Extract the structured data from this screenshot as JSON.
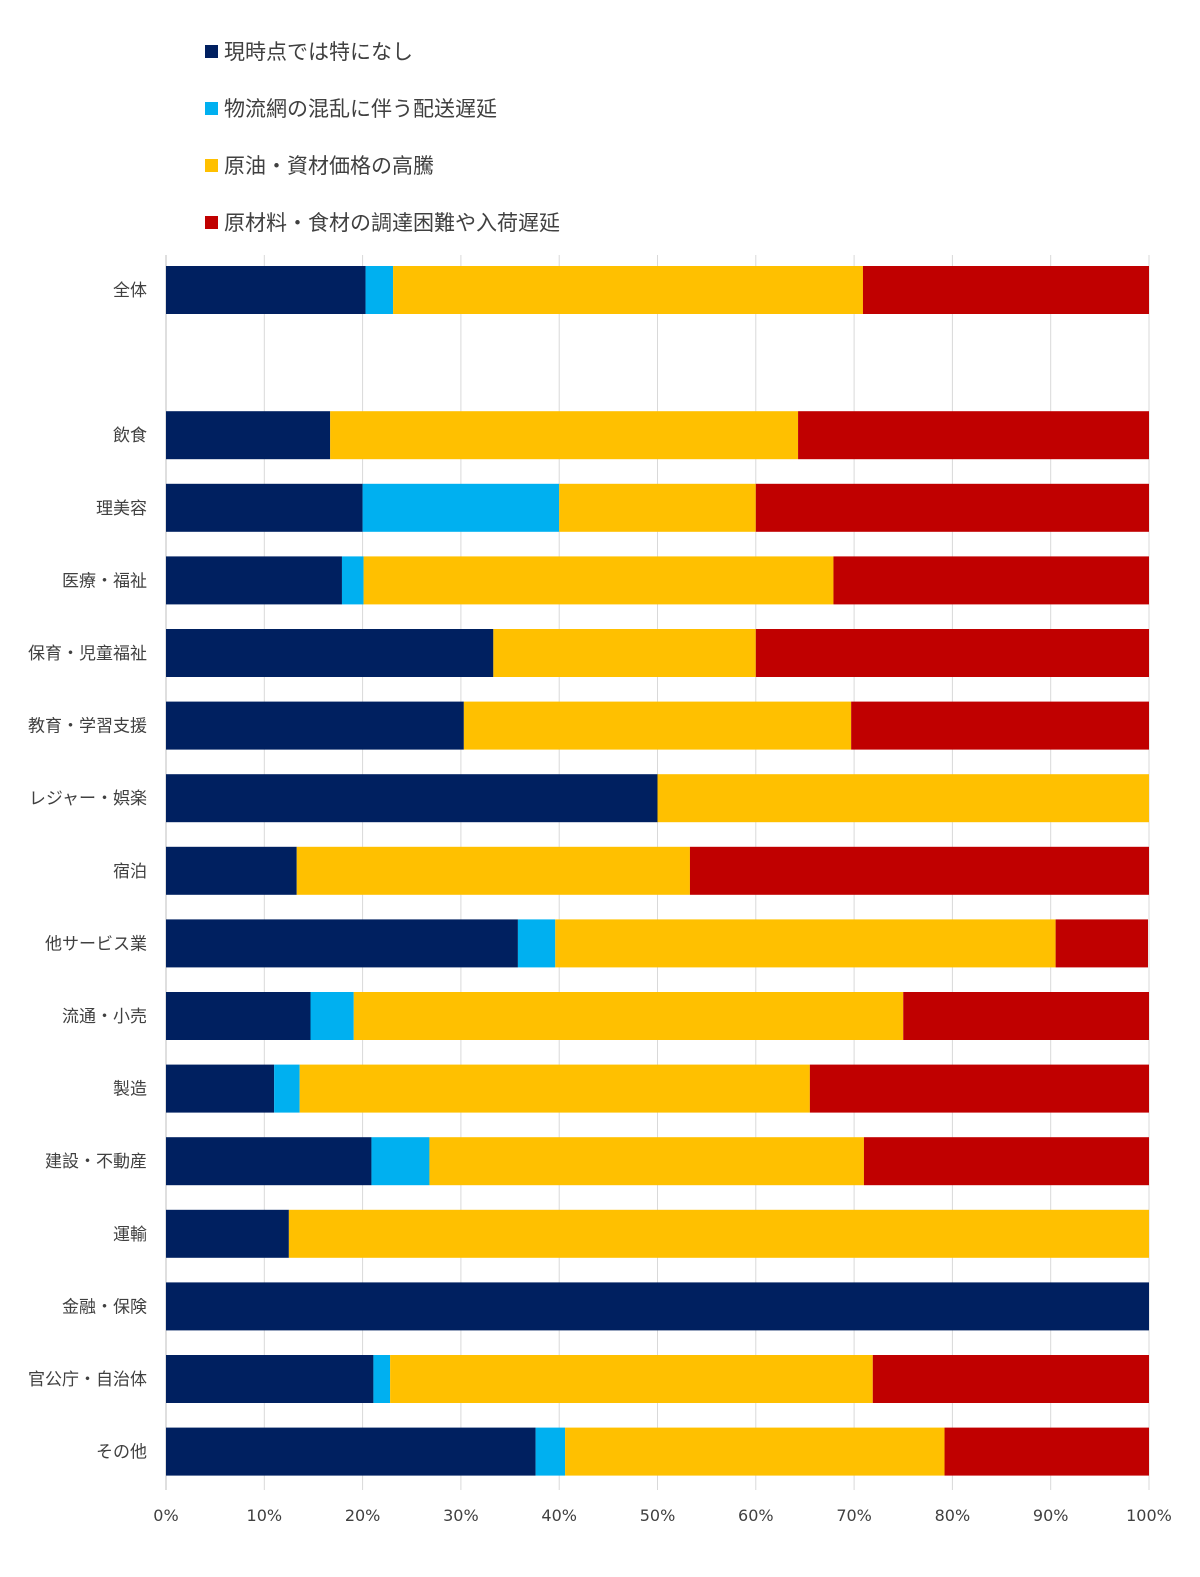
{
  "chart_data": {
    "type": "bar",
    "orientation": "horizontal",
    "stacked": "percent",
    "legend_position": "top",
    "grid": true,
    "xlim": [
      0,
      100
    ],
    "x_ticks": [
      "0%",
      "10%",
      "20%",
      "30%",
      "40%",
      "50%",
      "60%",
      "70%",
      "80%",
      "90%",
      "100%"
    ],
    "categories": [
      "全体",
      "",
      "飲食",
      "理美容",
      "医療・福祉",
      "保育・児童福祉",
      "教育・学習支援",
      "レジャー・娯楽",
      "宿泊",
      "他サービス業",
      "流通・小売",
      "製造",
      "建設・不動産",
      "運輸",
      "金融・保険",
      "官公庁・自治体",
      "その他"
    ],
    "series": [
      {
        "name": "現時点では特になし",
        "color": "#002060",
        "values": [
          20.3,
          null,
          16.7,
          20.0,
          17.9,
          33.3,
          30.3,
          50.0,
          13.3,
          35.8,
          14.7,
          11.0,
          20.9,
          12.5,
          100.0,
          21.1,
          37.6
        ]
      },
      {
        "name": "物流網の混乱に伴う配送遅延",
        "color": "#00B0F0",
        "values": [
          2.8,
          null,
          0.0,
          20.0,
          2.2,
          0.0,
          0.0,
          0.0,
          0.0,
          3.8,
          4.4,
          2.6,
          5.9,
          0.0,
          0.0,
          1.7,
          3.0
        ]
      },
      {
        "name": "原油・資材価格の高騰",
        "color": "#FFC000",
        "values": [
          47.8,
          null,
          47.6,
          20.0,
          47.8,
          26.7,
          39.4,
          50.0,
          40.0,
          50.9,
          55.9,
          51.9,
          44.2,
          87.5,
          0.0,
          49.1,
          38.6
        ]
      },
      {
        "name": "原材料・食材の調達困難や入荷遅延",
        "color": "#C00000",
        "values": [
          29.1,
          null,
          35.7,
          40.0,
          32.1,
          40.0,
          30.3,
          0.0,
          46.7,
          9.4,
          25.0,
          34.5,
          29.0,
          0.0,
          0.0,
          28.1,
          20.8
        ]
      }
    ]
  }
}
